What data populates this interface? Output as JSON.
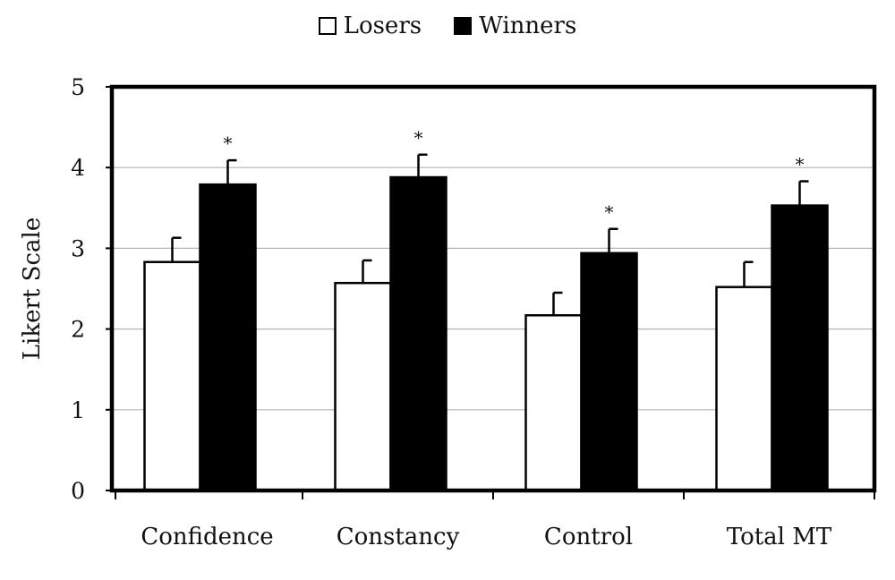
{
  "chart_data": {
    "type": "bar",
    "categories": [
      "Confidence",
      "Constancy",
      "Control",
      "Total MT"
    ],
    "series": [
      {
        "name": "Losers",
        "values": [
          2.83,
          2.57,
          2.17,
          2.52
        ],
        "errors": [
          0.3,
          0.28,
          0.28,
          0.31
        ],
        "color": "#ffffff"
      },
      {
        "name": "Winners",
        "values": [
          3.79,
          3.88,
          2.94,
          3.53
        ],
        "errors": [
          0.3,
          0.28,
          0.3,
          0.3
        ],
        "color": "#000000"
      }
    ],
    "significance_marker": "*",
    "significant": [
      true,
      true,
      true,
      true
    ],
    "ylabel": "Likert Scale",
    "xlabel": "",
    "ylim": [
      0,
      5
    ],
    "yticks": [
      "0",
      "1",
      "2",
      "3",
      "4",
      "5"
    ],
    "grid": true,
    "legend_position": "top-center"
  }
}
